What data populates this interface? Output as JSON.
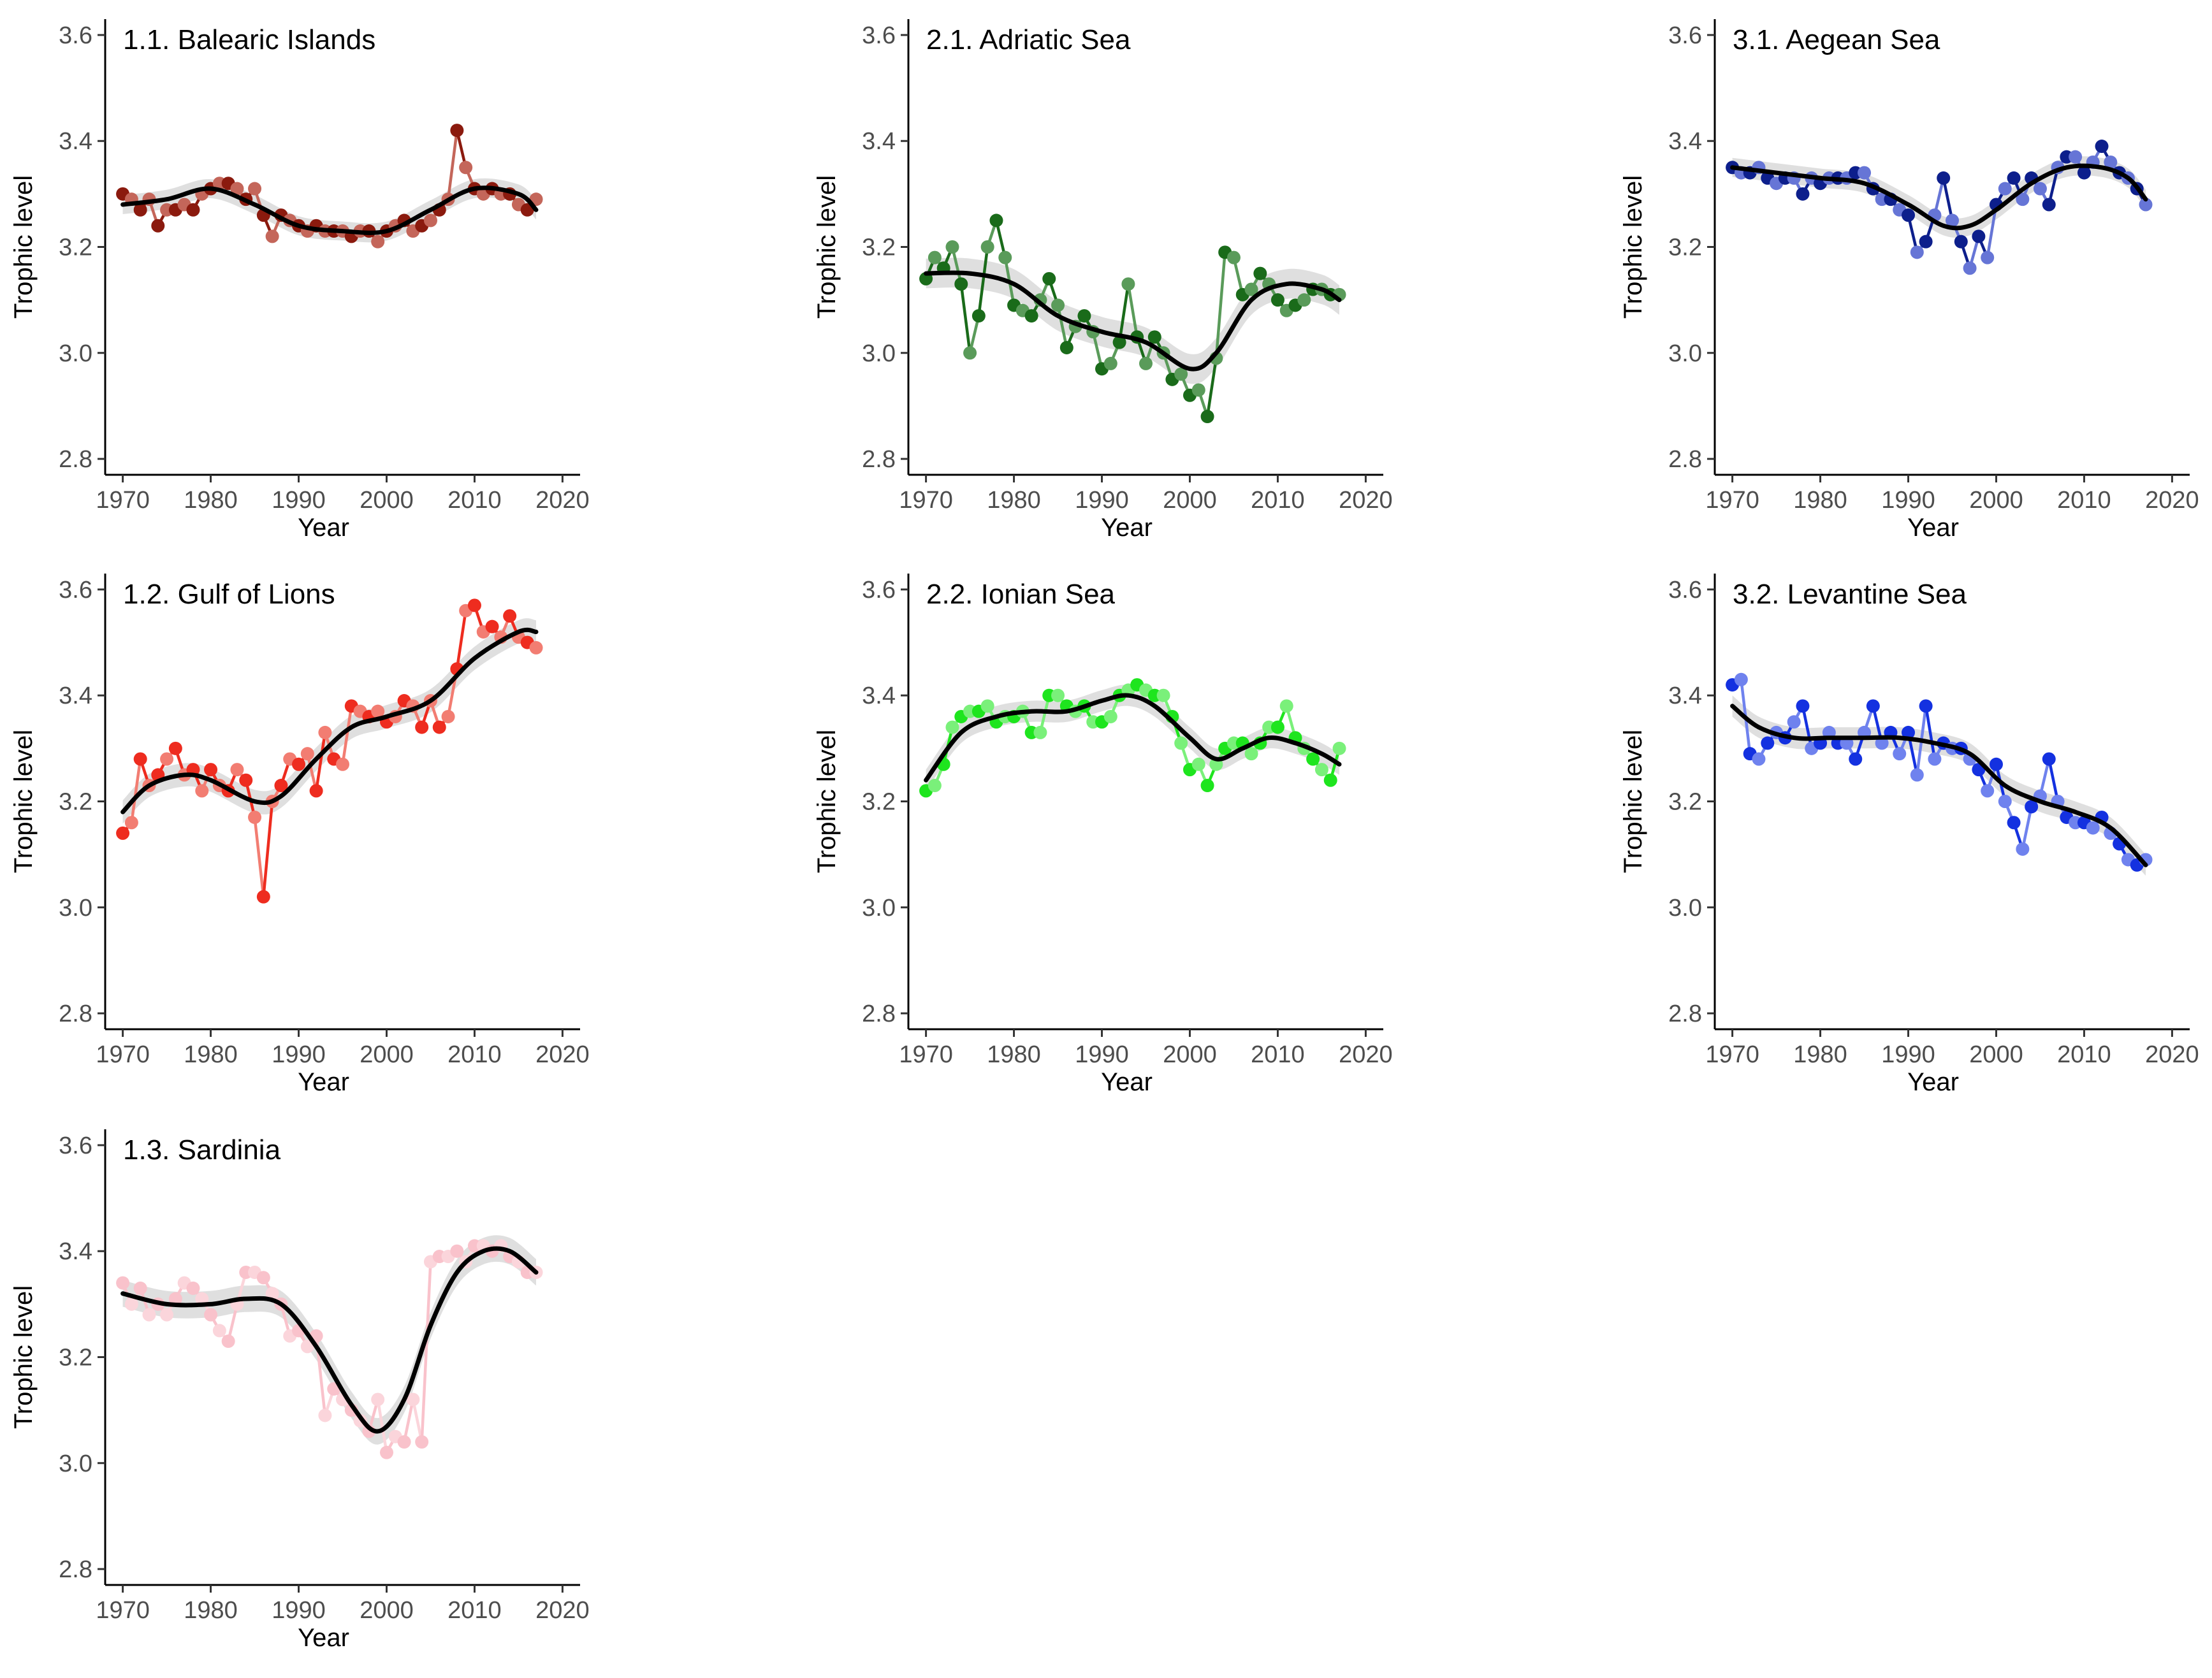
{
  "figure": {
    "y_axis_label": "Trophic level",
    "x_axis_label": "Year",
    "band_color": "#d9d9d9",
    "trend_color": "#000000"
  },
  "chart_data": [
    {
      "type": "line",
      "title": "1.1. Balearic Islands",
      "xlabel": "Year",
      "ylabel": "Trophic level",
      "xlim": [
        1968,
        2022
      ],
      "ylim": [
        2.77,
        3.63
      ],
      "xticks": [
        1970,
        1980,
        1990,
        2000,
        2010,
        2020
      ],
      "yticks": [
        2.8,
        3.0,
        3.2,
        3.4,
        3.6
      ],
      "point_colors": [
        "#8b1a0e",
        "#c4665a"
      ],
      "x": [
        1970,
        1971,
        1972,
        1973,
        1974,
        1975,
        1976,
        1977,
        1978,
        1979,
        1980,
        1981,
        1982,
        1983,
        1984,
        1985,
        1986,
        1987,
        1988,
        1989,
        1990,
        1991,
        1992,
        1993,
        1994,
        1995,
        1996,
        1997,
        1998,
        1999,
        2000,
        2001,
        2002,
        2003,
        2004,
        2005,
        2006,
        2007,
        2008,
        2009,
        2010,
        2011,
        2012,
        2013,
        2014,
        2015,
        2016,
        2017
      ],
      "y": [
        3.3,
        3.29,
        3.27,
        3.29,
        3.24,
        3.27,
        3.27,
        3.28,
        3.27,
        3.3,
        3.31,
        3.32,
        3.32,
        3.31,
        3.29,
        3.31,
        3.26,
        3.22,
        3.26,
        3.25,
        3.24,
        3.23,
        3.24,
        3.23,
        3.23,
        3.23,
        3.22,
        3.23,
        3.23,
        3.21,
        3.23,
        3.24,
        3.25,
        3.23,
        3.24,
        3.25,
        3.27,
        3.29,
        3.42,
        3.35,
        3.31,
        3.3,
        3.31,
        3.3,
        3.3,
        3.28,
        3.27,
        3.29
      ],
      "trend": {
        "x": [
          1970,
          1975,
          1980,
          1985,
          1990,
          1995,
          2000,
          2005,
          2010,
          2015,
          2017
        ],
        "y": [
          3.28,
          3.29,
          3.31,
          3.28,
          3.24,
          3.23,
          3.23,
          3.27,
          3.31,
          3.3,
          3.27
        ]
      },
      "band_halfwidth": 0.018
    },
    {
      "type": "line",
      "title": "1.2. Gulf of Lions",
      "xlabel": "Year",
      "ylabel": "Trophic level",
      "xlim": [
        1968,
        2022
      ],
      "ylim": [
        2.77,
        3.63
      ],
      "xticks": [
        1970,
        1980,
        1990,
        2000,
        2010,
        2020
      ],
      "yticks": [
        2.8,
        3.0,
        3.2,
        3.4,
        3.6
      ],
      "point_colors": [
        "#ee2c1f",
        "#f27d72"
      ],
      "x": [
        1970,
        1971,
        1972,
        1973,
        1974,
        1975,
        1976,
        1977,
        1978,
        1979,
        1980,
        1981,
        1982,
        1983,
        1984,
        1985,
        1986,
        1987,
        1988,
        1989,
        1990,
        1991,
        1992,
        1993,
        1994,
        1995,
        1996,
        1997,
        1998,
        1999,
        2000,
        2001,
        2002,
        2003,
        2004,
        2005,
        2006,
        2007,
        2008,
        2009,
        2010,
        2011,
        2012,
        2013,
        2014,
        2015,
        2016,
        2017
      ],
      "y": [
        3.14,
        3.16,
        3.28,
        3.23,
        3.25,
        3.28,
        3.3,
        3.25,
        3.26,
        3.22,
        3.26,
        3.23,
        3.22,
        3.26,
        3.24,
        3.17,
        3.02,
        3.2,
        3.23,
        3.28,
        3.27,
        3.29,
        3.22,
        3.33,
        3.28,
        3.27,
        3.38,
        3.37,
        3.36,
        3.37,
        3.35,
        3.36,
        3.39,
        3.38,
        3.34,
        3.39,
        3.34,
        3.36,
        3.45,
        3.56,
        3.57,
        3.52,
        3.53,
        3.51,
        3.55,
        3.51,
        3.5,
        3.49
      ],
      "trend": {
        "x": [
          1970,
          1973,
          1977,
          1980,
          1985,
          1988,
          1992,
          1996,
          2000,
          2005,
          2010,
          2015,
          2017
        ],
        "y": [
          3.18,
          3.23,
          3.25,
          3.24,
          3.2,
          3.21,
          3.28,
          3.34,
          3.36,
          3.39,
          3.47,
          3.52,
          3.52
        ]
      },
      "band_halfwidth": 0.022
    },
    {
      "type": "line",
      "title": "1.3. Sardinia",
      "xlabel": "Year",
      "ylabel": "Trophic level",
      "xlim": [
        1968,
        2022
      ],
      "ylim": [
        2.77,
        3.63
      ],
      "xticks": [
        1970,
        1980,
        1990,
        2000,
        2010,
        2020
      ],
      "yticks": [
        2.8,
        3.0,
        3.2,
        3.4,
        3.6
      ],
      "point_colors": [
        "#f9c2cb",
        "#fbd5db"
      ],
      "x": [
        1970,
        1971,
        1972,
        1973,
        1974,
        1975,
        1976,
        1977,
        1978,
        1979,
        1980,
        1981,
        1982,
        1983,
        1984,
        1985,
        1986,
        1987,
        1988,
        1989,
        1990,
        1991,
        1992,
        1993,
        1994,
        1995,
        1996,
        1997,
        1998,
        1999,
        2000,
        2001,
        2002,
        2003,
        2004,
        2005,
        2006,
        2007,
        2008,
        2009,
        2010,
        2011,
        2012,
        2013,
        2014,
        2015,
        2016,
        2017
      ],
      "y": [
        3.34,
        3.3,
        3.33,
        3.28,
        3.3,
        3.28,
        3.31,
        3.34,
        3.33,
        3.31,
        3.28,
        3.25,
        3.23,
        3.3,
        3.36,
        3.36,
        3.35,
        3.32,
        3.3,
        3.24,
        3.25,
        3.22,
        3.24,
        3.09,
        3.14,
        3.12,
        3.1,
        3.08,
        3.06,
        3.12,
        3.02,
        3.05,
        3.04,
        3.12,
        3.04,
        3.38,
        3.39,
        3.39,
        3.4,
        3.38,
        3.41,
        3.41,
        3.4,
        3.41,
        3.39,
        3.38,
        3.36,
        3.36
      ],
      "trend": {
        "x": [
          1970,
          1975,
          1980,
          1984,
          1988,
          1992,
          1996,
          1999,
          2002,
          2005,
          2008,
          2011,
          2014,
          2017
        ],
        "y": [
          3.32,
          3.3,
          3.3,
          3.31,
          3.3,
          3.22,
          3.11,
          3.06,
          3.12,
          3.26,
          3.36,
          3.4,
          3.4,
          3.36
        ]
      },
      "band_halfwidth": 0.025
    },
    {
      "type": "line",
      "title": "2.1. Adriatic Sea",
      "xlabel": "Year",
      "ylabel": "Trophic level",
      "xlim": [
        1968,
        2022
      ],
      "ylim": [
        2.77,
        3.63
      ],
      "xticks": [
        1970,
        1980,
        1990,
        2000,
        2010,
        2020
      ],
      "yticks": [
        2.8,
        3.0,
        3.2,
        3.4,
        3.6
      ],
      "point_colors": [
        "#1a6b1a",
        "#5a9b5a"
      ],
      "x": [
        1970,
        1971,
        1972,
        1973,
        1974,
        1975,
        1976,
        1977,
        1978,
        1979,
        1980,
        1981,
        1982,
        1983,
        1984,
        1985,
        1986,
        1987,
        1988,
        1989,
        1990,
        1991,
        1992,
        1993,
        1994,
        1995,
        1996,
        1997,
        1998,
        1999,
        2000,
        2001,
        2002,
        2003,
        2004,
        2005,
        2006,
        2007,
        2008,
        2009,
        2010,
        2011,
        2012,
        2013,
        2014,
        2015,
        2016,
        2017
      ],
      "y": [
        3.14,
        3.18,
        3.16,
        3.2,
        3.13,
        3.0,
        3.07,
        3.2,
        3.25,
        3.18,
        3.09,
        3.08,
        3.07,
        3.1,
        3.14,
        3.09,
        3.01,
        3.05,
        3.07,
        3.04,
        2.97,
        2.98,
        3.02,
        3.13,
        3.03,
        2.98,
        3.03,
        3.0,
        2.95,
        2.96,
        2.92,
        2.93,
        2.88,
        2.99,
        3.19,
        3.18,
        3.11,
        3.12,
        3.15,
        3.13,
        3.1,
        3.08,
        3.09,
        3.1,
        3.12,
        3.12,
        3.11,
        3.11
      ],
      "trend": {
        "x": [
          1970,
          1975,
          1980,
          1985,
          1990,
          1995,
          2000,
          2003,
          2007,
          2011,
          2015,
          2017
        ],
        "y": [
          3.15,
          3.15,
          3.13,
          3.07,
          3.04,
          3.02,
          2.97,
          3.0,
          3.1,
          3.13,
          3.12,
          3.1
        ]
      },
      "band_halfwidth": 0.028
    },
    {
      "type": "line",
      "title": "2.2. Ionian Sea",
      "xlabel": "Year",
      "ylabel": "Trophic level",
      "xlim": [
        1968,
        2022
      ],
      "ylim": [
        2.77,
        3.63
      ],
      "xticks": [
        1970,
        1980,
        1990,
        2000,
        2010,
        2020
      ],
      "yticks": [
        2.8,
        3.0,
        3.2,
        3.4,
        3.6
      ],
      "point_colors": [
        "#1ee51e",
        "#7af07a"
      ],
      "x": [
        1970,
        1971,
        1972,
        1973,
        1974,
        1975,
        1976,
        1977,
        1978,
        1979,
        1980,
        1981,
        1982,
        1983,
        1984,
        1985,
        1986,
        1987,
        1988,
        1989,
        1990,
        1991,
        1992,
        1993,
        1994,
        1995,
        1996,
        1997,
        1998,
        1999,
        2000,
        2001,
        2002,
        2003,
        2004,
        2005,
        2006,
        2007,
        2008,
        2009,
        2010,
        2011,
        2012,
        2013,
        2014,
        2015,
        2016,
        2017
      ],
      "y": [
        3.22,
        3.23,
        3.27,
        3.34,
        3.36,
        3.37,
        3.37,
        3.38,
        3.35,
        3.36,
        3.36,
        3.37,
        3.33,
        3.33,
        3.4,
        3.4,
        3.38,
        3.37,
        3.38,
        3.35,
        3.35,
        3.36,
        3.4,
        3.41,
        3.42,
        3.41,
        3.4,
        3.4,
        3.36,
        3.31,
        3.26,
        3.27,
        3.23,
        3.27,
        3.3,
        3.31,
        3.31,
        3.29,
        3.31,
        3.34,
        3.34,
        3.38,
        3.32,
        3.3,
        3.28,
        3.26,
        3.24,
        3.3
      ],
      "trend": {
        "x": [
          1970,
          1974,
          1978,
          1982,
          1986,
          1990,
          1993,
          1996,
          2000,
          2003,
          2006,
          2009,
          2012,
          2015,
          2017
        ],
        "y": [
          3.24,
          3.33,
          3.36,
          3.37,
          3.37,
          3.39,
          3.4,
          3.38,
          3.32,
          3.28,
          3.3,
          3.32,
          3.31,
          3.29,
          3.27
        ]
      },
      "band_halfwidth": 0.02
    },
    {
      "type": "line",
      "title": "3.1. Aegean Sea",
      "xlabel": "Year",
      "ylabel": "Trophic level",
      "xlim": [
        1968,
        2022
      ],
      "ylim": [
        2.77,
        3.63
      ],
      "xticks": [
        1970,
        1980,
        1990,
        2000,
        2010,
        2020
      ],
      "yticks": [
        2.8,
        3.0,
        3.2,
        3.4,
        3.6
      ],
      "point_colors": [
        "#0d1f8c",
        "#6675d6"
      ],
      "x": [
        1970,
        1971,
        1972,
        1973,
        1974,
        1975,
        1976,
        1977,
        1978,
        1979,
        1980,
        1981,
        1982,
        1983,
        1984,
        1985,
        1986,
        1987,
        1988,
        1989,
        1990,
        1991,
        1992,
        1993,
        1994,
        1995,
        1996,
        1997,
        1998,
        1999,
        2000,
        2001,
        2002,
        2003,
        2004,
        2005,
        2006,
        2007,
        2008,
        2009,
        2010,
        2011,
        2012,
        2013,
        2014,
        2015,
        2016,
        2017
      ],
      "y": [
        3.35,
        3.34,
        3.34,
        3.35,
        3.33,
        3.32,
        3.33,
        3.33,
        3.3,
        3.33,
        3.32,
        3.33,
        3.33,
        3.33,
        3.34,
        3.34,
        3.31,
        3.29,
        3.29,
        3.27,
        3.26,
        3.19,
        3.21,
        3.26,
        3.33,
        3.25,
        3.21,
        3.16,
        3.22,
        3.18,
        3.28,
        3.31,
        3.33,
        3.29,
        3.33,
        3.31,
        3.28,
        3.35,
        3.37,
        3.37,
        3.34,
        3.36,
        3.39,
        3.36,
        3.34,
        3.33,
        3.31,
        3.28
      ],
      "trend": {
        "x": [
          1970,
          1975,
          1980,
          1985,
          1990,
          1994,
          1997,
          2000,
          2004,
          2008,
          2012,
          2015,
          2017
        ],
        "y": [
          3.35,
          3.34,
          3.33,
          3.32,
          3.28,
          3.24,
          3.24,
          3.27,
          3.32,
          3.35,
          3.35,
          3.33,
          3.29
        ]
      },
      "band_halfwidth": 0.018
    },
    {
      "type": "line",
      "title": "3.2. Levantine Sea",
      "xlabel": "Year",
      "ylabel": "Trophic level",
      "xlim": [
        1968,
        2022
      ],
      "ylim": [
        2.77,
        3.63
      ],
      "xticks": [
        1970,
        1980,
        1990,
        2000,
        2010,
        2020
      ],
      "yticks": [
        2.8,
        3.0,
        3.2,
        3.4,
        3.6
      ],
      "point_colors": [
        "#1431e0",
        "#6f82ee"
      ],
      "x": [
        1970,
        1971,
        1972,
        1973,
        1974,
        1975,
        1976,
        1977,
        1978,
        1979,
        1980,
        1981,
        1982,
        1983,
        1984,
        1985,
        1986,
        1987,
        1988,
        1989,
        1990,
        1991,
        1992,
        1993,
        1994,
        1995,
        1996,
        1997,
        1998,
        1999,
        2000,
        2001,
        2002,
        2003,
        2004,
        2005,
        2006,
        2007,
        2008,
        2009,
        2010,
        2011,
        2012,
        2013,
        2014,
        2015,
        2016,
        2017
      ],
      "y": [
        3.42,
        3.43,
        3.29,
        3.28,
        3.31,
        3.33,
        3.32,
        3.35,
        3.38,
        3.3,
        3.31,
        3.33,
        3.31,
        3.31,
        3.28,
        3.33,
        3.38,
        3.31,
        3.33,
        3.29,
        3.33,
        3.25,
        3.38,
        3.28,
        3.31,
        3.3,
        3.3,
        3.28,
        3.26,
        3.22,
        3.27,
        3.2,
        3.16,
        3.11,
        3.19,
        3.21,
        3.28,
        3.2,
        3.17,
        3.16,
        3.16,
        3.15,
        3.17,
        3.14,
        3.12,
        3.09,
        3.08,
        3.09
      ],
      "trend": {
        "x": [
          1970,
          1973,
          1977,
          1981,
          1985,
          1989,
          1993,
          1997,
          2001,
          2005,
          2009,
          2013,
          2017
        ],
        "y": [
          3.38,
          3.34,
          3.32,
          3.32,
          3.32,
          3.32,
          3.31,
          3.29,
          3.23,
          3.2,
          3.18,
          3.15,
          3.08
        ]
      },
      "band_halfwidth": 0.02
    }
  ]
}
